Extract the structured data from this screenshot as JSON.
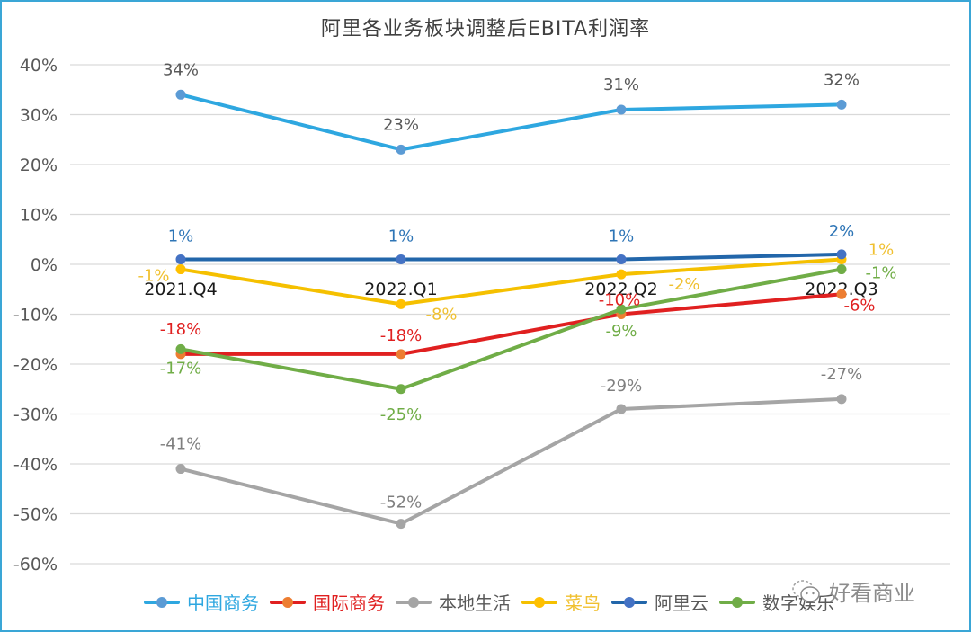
{
  "chart_data": {
    "type": "line",
    "title": "阿里各业务板块调整后EBITA利润率",
    "xlabel": "",
    "ylabel": "",
    "categories": [
      "2021.Q4",
      "2022.Q1",
      "2022.Q2",
      "2022.Q3"
    ],
    "ylim": [
      -60,
      40
    ],
    "yticks": [
      40,
      30,
      20,
      10,
      0,
      -10,
      -20,
      -30,
      -40,
      -50,
      -60
    ],
    "ytick_labels": [
      "40%",
      "30%",
      "20%",
      "10%",
      "0%",
      "-10%",
      "-20%",
      "-30%",
      "-40%",
      "-50%",
      "-60%"
    ],
    "grid": true,
    "legend_position": "bottom",
    "series": [
      {
        "name": "中国商务",
        "values": [
          34,
          23,
          31,
          32
        ],
        "labels": [
          "34%",
          "23%",
          "31%",
          "32%"
        ],
        "color": "#2ea7e0",
        "marker_color": "#5b9bd5",
        "label_color": "#595959"
      },
      {
        "name": "国际商务",
        "values": [
          -18,
          -18,
          -10,
          -6
        ],
        "labels": [
          "-18%",
          "-18%",
          "-10%",
          "-6%"
        ],
        "color": "#e02020",
        "marker_color": "#ed7d31",
        "label_color": "#e02020"
      },
      {
        "name": "本地生活",
        "values": [
          -41,
          -52,
          -29,
          -27
        ],
        "labels": [
          "-41%",
          "-52%",
          "-29%",
          "-27%"
        ],
        "color": "#a5a5a5",
        "marker_color": "#a5a5a5",
        "label_color": "#7f7f7f"
      },
      {
        "name": "菜鸟",
        "values": [
          -1,
          -8,
          -2,
          1
        ],
        "labels": [
          "-1%",
          "-8%",
          "-2%",
          "1%"
        ],
        "color": "#f5c000",
        "marker_color": "#ffc000",
        "label_color": "#f0c030"
      },
      {
        "name": "阿里云",
        "values": [
          1,
          1,
          1,
          2
        ],
        "labels": [
          "1%",
          "1%",
          "1%",
          "2%"
        ],
        "color": "#2266aa",
        "marker_color": "#4472c4",
        "label_color": "#2e75b6"
      },
      {
        "name": "数字娱乐",
        "values": [
          -17,
          -25,
          -9,
          -1
        ],
        "labels": [
          "-17%",
          "-25%",
          "-9%",
          "-1%"
        ],
        "color": "#70ad47",
        "marker_color": "#70ad47",
        "label_color": "#70ad47"
      }
    ]
  },
  "watermark": {
    "text": "好看商业",
    "icon": "wechat-icon"
  }
}
